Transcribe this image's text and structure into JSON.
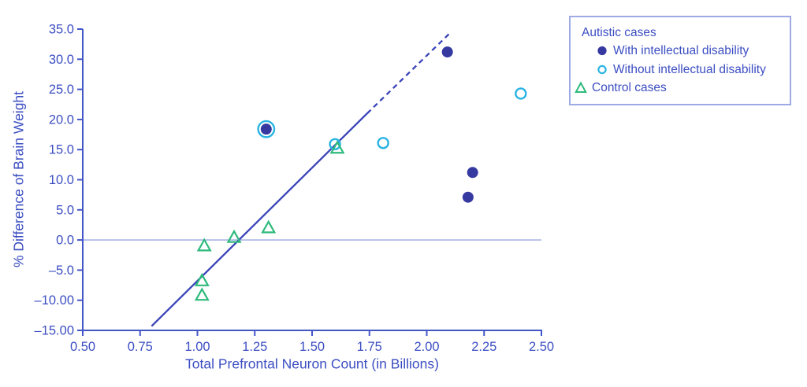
{
  "chart_data": {
    "type": "scatter",
    "title": "",
    "xlabel": "Total Prefrontal Neuron Count (in Billions)",
    "ylabel": "% Difference of Brain Weight",
    "xlim": [
      0.5,
      2.5
    ],
    "ylim": [
      -15,
      35
    ],
    "grid": false,
    "xticks": [
      {
        "v": 0.5,
        "label": "0.50"
      },
      {
        "v": 0.75,
        "label": "0.75"
      },
      {
        "v": 1.0,
        "label": "1.00"
      },
      {
        "v": 1.25,
        "label": "1.25"
      },
      {
        "v": 1.5,
        "label": "1.50"
      },
      {
        "v": 1.75,
        "label": "1.75"
      },
      {
        "v": 2.0,
        "label": "2.00"
      },
      {
        "v": 2.25,
        "label": "2.25"
      },
      {
        "v": 2.5,
        "label": "2.50"
      }
    ],
    "yticks": [
      {
        "v": 35,
        "label": "35.0"
      },
      {
        "v": 30,
        "label": "30.0"
      },
      {
        "v": 25,
        "label": "25.0"
      },
      {
        "v": 20,
        "label": "20.0"
      },
      {
        "v": 15,
        "label": "15.0"
      },
      {
        "v": 10,
        "label": "10.0"
      },
      {
        "v": 5,
        "label": "5.0"
      },
      {
        "v": 0,
        "label": "0.0"
      },
      {
        "v": -5,
        "label": "–5.0"
      },
      {
        "v": -10,
        "label": "–10.00"
      },
      {
        "v": -15,
        "label": "–15.00"
      }
    ],
    "series": [
      {
        "name": "Autistic cases - With intellectual disability",
        "marker": "circle-filled",
        "color": "#3539a0",
        "points": [
          [
            2.09,
            31.2
          ],
          [
            2.2,
            11.2
          ],
          [
            2.18,
            7.1
          ],
          [
            1.3,
            18.4
          ]
        ]
      },
      {
        "name": "Autistic cases - Without intellectual disability",
        "marker": "circle-open",
        "color": "#29b4e2",
        "points": [
          [
            2.41,
            24.3
          ],
          [
            1.81,
            16.1
          ],
          [
            1.6,
            15.9
          ],
          [
            1.3,
            18.4
          ]
        ]
      },
      {
        "name": "Control cases",
        "marker": "triangle-open",
        "color": "#2eba7c",
        "points": [
          [
            1.61,
            15.2
          ],
          [
            1.31,
            2.0
          ],
          [
            1.16,
            0.4
          ],
          [
            1.03,
            -1.0
          ],
          [
            1.02,
            -6.8
          ],
          [
            1.02,
            -9.2
          ]
        ]
      }
    ],
    "regression_line": {
      "color": "#3a44b8",
      "solid": [
        [
          0.8,
          -14.3
        ],
        [
          1.74,
          21.0
        ]
      ],
      "dashed": [
        [
          1.74,
          21.0
        ],
        [
          2.1,
          34.3
        ]
      ]
    },
    "zero_line": {
      "y": 0,
      "color": "#9aa6e4"
    },
    "legend": {
      "position": "top-right-outside",
      "title": "Autistic cases",
      "items": [
        {
          "label": "With intellectual disability",
          "marker": "circle-filled"
        },
        {
          "label": "Without intellectual disability",
          "marker": "circle-open"
        },
        {
          "label": "Control cases",
          "marker": "triangle-open"
        }
      ]
    }
  },
  "colors": {
    "text_blue": "#3c4ec2",
    "axis_blue": "#4356c6",
    "dark_marker": "#3539a0",
    "cyan_marker": "#29b4e2",
    "green_marker": "#2eba7c",
    "line_blue": "#3a44b8",
    "zero_line": "#9aa6e4",
    "legend_border": "#9daae4",
    "background": "#ffffff"
  }
}
